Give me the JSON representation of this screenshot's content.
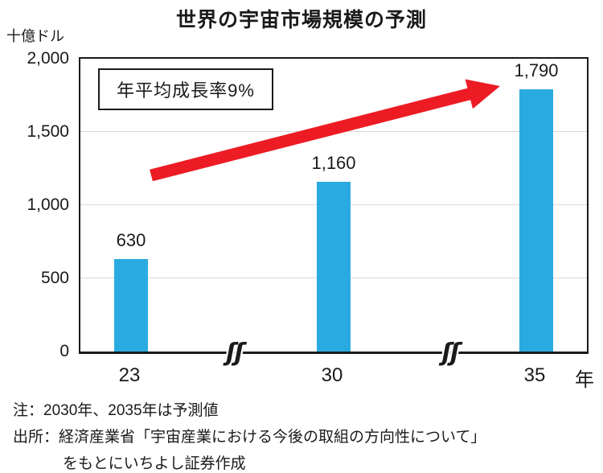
{
  "title": "世界の宇宙市場規模の予測",
  "y_axis_unit": "十億ドル",
  "x_axis_unit": "年",
  "annotation_label": "年平均成長率9%",
  "axis_break_symbol": "ʃʃ",
  "notes": {
    "line1": "注：2030年、2035年は予測値",
    "line2": "出所：経済産業省「宇宙産業における今後の取組の方向性について」",
    "line3": "をもとにいちよし証券作成"
  },
  "colors": {
    "bar": "#29abe2",
    "arrow": "#ed1c24",
    "grid": "#d9d9d9",
    "axis": "#1a1a1a",
    "text": "#1a1a1a"
  },
  "chart_data": {
    "type": "bar",
    "title": "世界の宇宙市場規模の予測",
    "xlabel": "年",
    "ylabel": "十億ドル",
    "categories": [
      "23",
      "30",
      "35"
    ],
    "values": [
      630,
      1160,
      1790
    ],
    "value_labels": [
      "630",
      "1,160",
      "1,790"
    ],
    "ylim": [
      0,
      2000
    ],
    "yticks": [
      0,
      500,
      1000,
      1500,
      2000
    ],
    "ytick_labels": [
      "0",
      "500",
      "1,000",
      "1,500",
      "2,000"
    ],
    "grid": "horizontal-light",
    "legend": "none",
    "axis_breaks_between_categories": true,
    "annotation": "年平均成長率9%",
    "trend_arrow": "upward red arrow from first bar toward last bar value label",
    "notes": [
      "注：2030年、2035年は予測値",
      "出所：経済産業省「宇宙産業における今後の取組の方向性について」をもとにいちよし証券作成"
    ]
  }
}
